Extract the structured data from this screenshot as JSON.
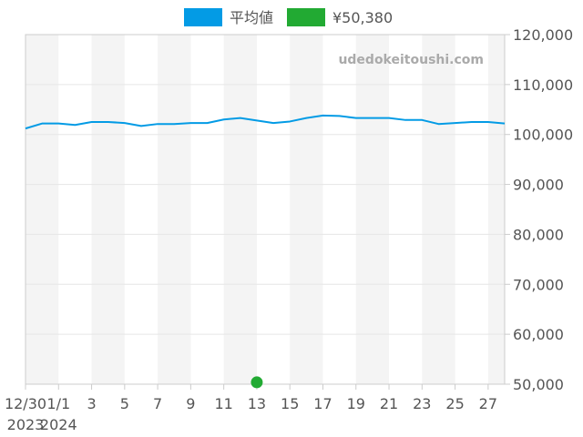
{
  "colors": {
    "average_line": "#039be5",
    "price_point": "#22aa33",
    "band": "#f4f4f4",
    "grid": "#e6e6e6",
    "axis": "#cccccc",
    "text": "#555555"
  },
  "legend": [
    {
      "label": "平均値",
      "color": "#039be5"
    },
    {
      "label": "¥50,380",
      "color": "#22aa33"
    }
  ],
  "watermark": "udedokeitoushi.com",
  "chart_data": {
    "type": "line",
    "x_ticks": [
      {
        "day": 0,
        "label": "12/30",
        "year": "2023"
      },
      {
        "day": 2,
        "label": "1/1",
        "year": "2024"
      },
      {
        "day": 4,
        "label": "3"
      },
      {
        "day": 6,
        "label": "5"
      },
      {
        "day": 8,
        "label": "7"
      },
      {
        "day": 10,
        "label": "9"
      },
      {
        "day": 12,
        "label": "11"
      },
      {
        "day": 14,
        "label": "13"
      },
      {
        "day": 16,
        "label": "15"
      },
      {
        "day": 18,
        "label": "17"
      },
      {
        "day": 20,
        "label": "19"
      },
      {
        "day": 22,
        "label": "21"
      },
      {
        "day": 24,
        "label": "23"
      },
      {
        "day": 26,
        "label": "25"
      },
      {
        "day": 28,
        "label": "27"
      }
    ],
    "xlim": [
      0,
      29
    ],
    "ylim": [
      50000,
      120000
    ],
    "y_ticks": [
      {
        "value": 50000,
        "label": "50,000"
      },
      {
        "value": 60000,
        "label": "60,000"
      },
      {
        "value": 70000,
        "label": "70,000"
      },
      {
        "value": 80000,
        "label": "80,000"
      },
      {
        "value": 90000,
        "label": "90,000"
      },
      {
        "value": 100000,
        "label": "100,000"
      },
      {
        "value": 110000,
        "label": "110,000"
      },
      {
        "value": 120000,
        "label": "120,000"
      }
    ],
    "y_axis_side": "right",
    "grid": true,
    "legend_position": "top-center",
    "series": [
      {
        "name": "平均値",
        "type": "line",
        "x": [
          0,
          1,
          2,
          3,
          4,
          5,
          6,
          7,
          8,
          9,
          10,
          11,
          12,
          13,
          14,
          15,
          16,
          17,
          18,
          19,
          20,
          21,
          22,
          23,
          24,
          25,
          26,
          27,
          28,
          29
        ],
        "y": [
          101200,
          102200,
          102200,
          101900,
          102500,
          102500,
          102300,
          101700,
          102100,
          102100,
          102300,
          102300,
          103000,
          103300,
          102800,
          102300,
          102600,
          103300,
          103800,
          103700,
          103300,
          103300,
          103300,
          102900,
          102900,
          102100,
          102300,
          102500,
          102500,
          102200
        ]
      },
      {
        "name": "¥50,380",
        "type": "scatter",
        "x": [
          14
        ],
        "y": [
          50380
        ]
      }
    ]
  }
}
